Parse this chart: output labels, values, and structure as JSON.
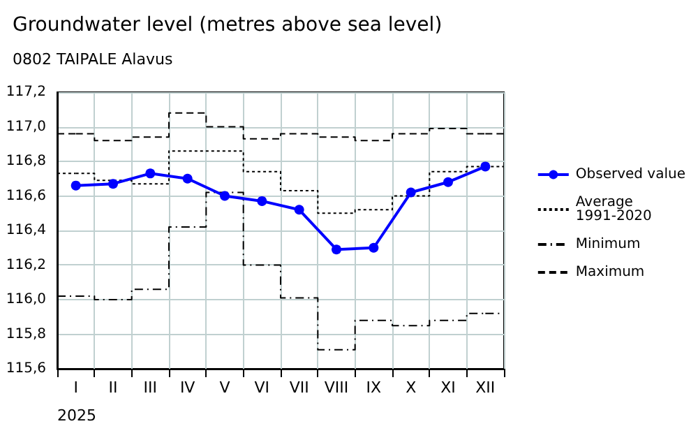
{
  "chart_data": {
    "type": "line",
    "title": "Groundwater level (metres above sea level)",
    "subtitle": "0802 TAIPALE Alavus",
    "xlabel": "2025",
    "categories": [
      "I",
      "II",
      "III",
      "IV",
      "V",
      "VI",
      "VII",
      "VIII",
      "IX",
      "X",
      "XI",
      "XII"
    ],
    "ylim": [
      115.6,
      117.2
    ],
    "yticks": [
      {
        "value": 115.6,
        "label": "115,6"
      },
      {
        "value": 115.8,
        "label": "115,8"
      },
      {
        "value": 116.0,
        "label": "116,0"
      },
      {
        "value": 116.2,
        "label": "116,2"
      },
      {
        "value": 116.4,
        "label": "116,4"
      },
      {
        "value": 116.6,
        "label": "116,6"
      },
      {
        "value": 116.8,
        "label": "116,8"
      },
      {
        "value": 117.0,
        "label": "117,0"
      },
      {
        "value": 117.2,
        "label": "117,2"
      }
    ],
    "grid": true,
    "legend": "right",
    "series": [
      {
        "name": "Observed value",
        "color": "#0000ff",
        "marker": "circle",
        "line_style": "solid",
        "values": [
          116.66,
          116.67,
          116.73,
          116.7,
          116.6,
          116.57,
          116.52,
          116.29,
          116.3,
          116.62,
          116.68,
          116.77
        ]
      },
      {
        "name": "Average 1991-2020",
        "type": "step",
        "color": "#000000",
        "marker": "none",
        "line_style": "dotted",
        "values": [
          116.73,
          116.69,
          116.67,
          116.86,
          116.86,
          116.74,
          116.63,
          116.5,
          116.52,
          116.6,
          116.74,
          116.77
        ]
      },
      {
        "name": "Minimum",
        "type": "step",
        "color": "#000000",
        "marker": "none",
        "line_style": "dashdot",
        "values": [
          116.02,
          116.0,
          116.06,
          116.42,
          116.62,
          116.2,
          116.01,
          115.71,
          115.88,
          115.85,
          115.88,
          115.92
        ]
      },
      {
        "name": "Maximum",
        "type": "step",
        "color": "#000000",
        "marker": "none",
        "line_style": "dashed",
        "values": [
          116.96,
          116.92,
          116.94,
          117.08,
          117.0,
          116.93,
          116.96,
          116.94,
          116.92,
          116.96,
          116.99,
          116.96
        ]
      }
    ]
  }
}
